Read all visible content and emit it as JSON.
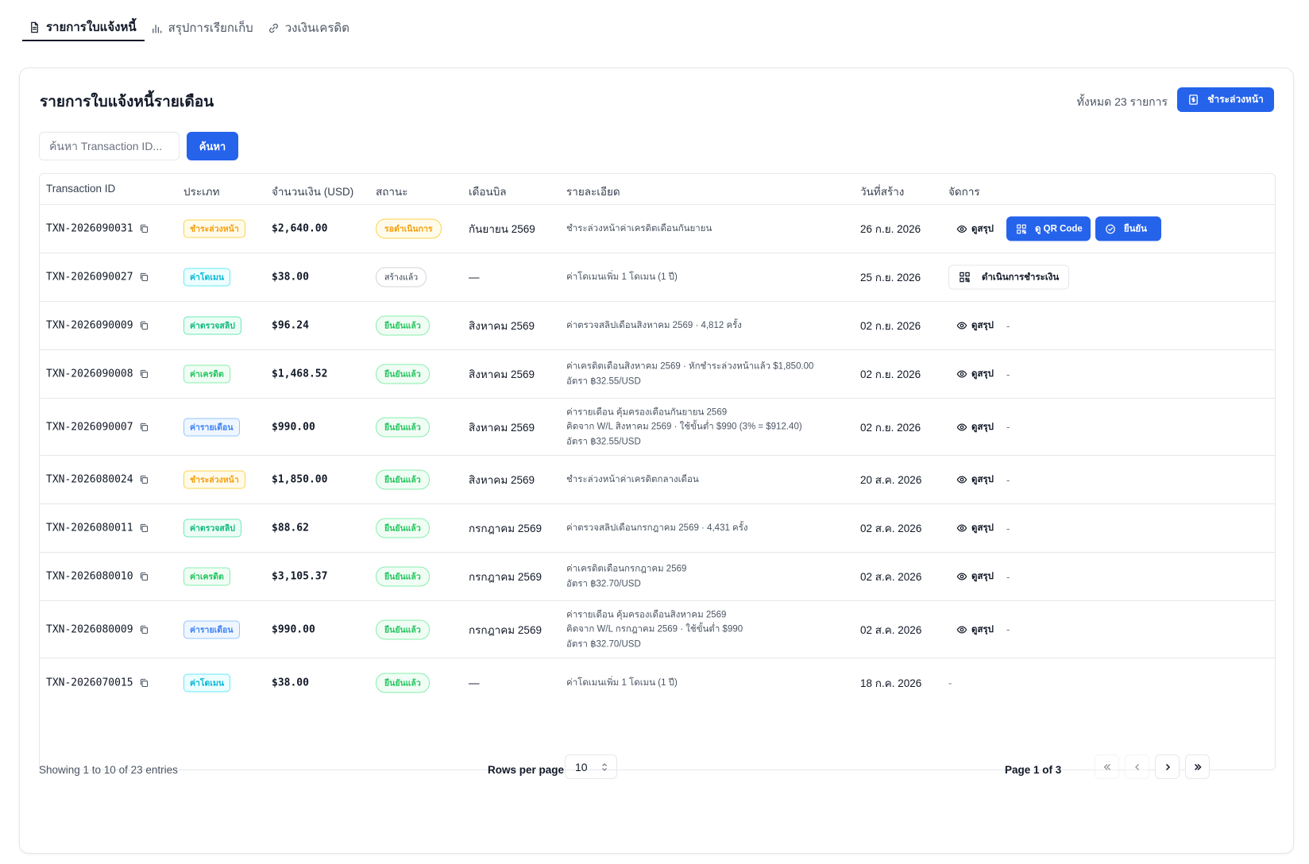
{
  "tabs": [
    {
      "label": "รายการใบแจ้งหนี้",
      "icon": "document-icon",
      "active": true
    },
    {
      "label": "สรุปการเรียกเก็บ",
      "icon": "bar-chart-icon",
      "active": false
    },
    {
      "label": "วงเงินเครดิต",
      "icon": "link-icon",
      "active": false
    }
  ],
  "card": {
    "title": "รายการใบแจ้งหนี้รายเดือน",
    "total_text": "ทั้งหมด 23 รายการ",
    "prepay_label": "ชำระล่วงหน้า"
  },
  "search": {
    "placeholder": "ค้นหา Transaction ID...",
    "value": "",
    "button_label": "ค้นหา"
  },
  "table": {
    "headers": [
      "Transaction ID",
      "ประเภท",
      "จำนวนเงิน (USD)",
      "สถานะ",
      "เดือนบิล",
      "รายละเอียด",
      "วันที่สร้าง",
      "จัดการ"
    ],
    "rows": [
      {
        "id": "TXN-2026090031",
        "type": "ชำระล่วงหน้า",
        "type_style": "prepay",
        "amount": "$2,640.00",
        "status": "รอดำเนินการ",
        "status_style": "pending",
        "month": "กันยายน 2569",
        "details": [
          "ชำระล่วงหน้าค่าเครดิตเดือนกันยายน"
        ],
        "date": "26 ก.ย. 2026",
        "actions": "pending"
      },
      {
        "id": "TXN-2026090027",
        "type": "ค่าโดเมน",
        "type_style": "domain",
        "amount": "$38.00",
        "status": "สร้างแล้ว",
        "status_style": "created",
        "month": "—",
        "details": [
          "ค่าโดเมนเพิ่ม 1 โดเมน (1 ปี)"
        ],
        "date": "25 ก.ย. 2026",
        "actions": "process"
      },
      {
        "id": "TXN-2026090009",
        "type": "ค่าตรวจสลิป",
        "type_style": "slip",
        "amount": "$96.24",
        "status": "ยืนยันแล้ว",
        "status_style": "confirmed",
        "month": "สิงหาคม 2569",
        "details": [
          "ค่าตรวจสลิปเดือนสิงหาคม 2569 · 4,812 ครั้ง"
        ],
        "date": "02 ก.ย. 2026",
        "actions": "view"
      },
      {
        "id": "TXN-2026090008",
        "type": "ค่าเครดิต",
        "type_style": "credit",
        "amount": "$1,468.52",
        "status": "ยืนยันแล้ว",
        "status_style": "confirmed",
        "month": "สิงหาคม 2569",
        "details": [
          "ค่าเครดิตเดือนสิงหาคม 2569 · หักชำระล่วงหน้าแล้ว $1,850.00",
          "อัตรา ฿32.55/USD"
        ],
        "date": "02 ก.ย. 2026",
        "actions": "view"
      },
      {
        "id": "TXN-2026090007",
        "type": "ค่ารายเดือน",
        "type_style": "monthly",
        "amount": "$990.00",
        "status": "ยืนยันแล้ว",
        "status_style": "confirmed",
        "month": "สิงหาคม 2569",
        "details": [
          "ค่ารายเดือน คุ้มครองเดือนกันยายน 2569",
          "คิดจาก W/L สิงหาคม 2569 · ใช้ขั้นต่ำ $990 (3% = $912.40)",
          "อัตรา ฿32.55/USD"
        ],
        "date": "02 ก.ย. 2026",
        "actions": "view"
      },
      {
        "id": "TXN-2026080024",
        "type": "ชำระล่วงหน้า",
        "type_style": "prepay",
        "amount": "$1,850.00",
        "status": "ยืนยันแล้ว",
        "status_style": "confirmed",
        "month": "สิงหาคม 2569",
        "details": [
          "ชำระล่วงหน้าค่าเครดิตกลางเดือน"
        ],
        "date": "20 ส.ค. 2026",
        "actions": "view"
      },
      {
        "id": "TXN-2026080011",
        "type": "ค่าตรวจสลิป",
        "type_style": "slip",
        "amount": "$88.62",
        "status": "ยืนยันแล้ว",
        "status_style": "confirmed",
        "month": "กรกฎาคม 2569",
        "details": [
          "ค่าตรวจสลิปเดือนกรกฎาคม 2569 · 4,431 ครั้ง"
        ],
        "date": "02 ส.ค. 2026",
        "actions": "view"
      },
      {
        "id": "TXN-2026080010",
        "type": "ค่าเครดิต",
        "type_style": "credit",
        "amount": "$3,105.37",
        "status": "ยืนยันแล้ว",
        "status_style": "confirmed",
        "month": "กรกฎาคม 2569",
        "details": [
          "ค่าเครดิตเดือนกรกฎาคม 2569",
          "อัตรา ฿32.70/USD"
        ],
        "date": "02 ส.ค. 2026",
        "actions": "view"
      },
      {
        "id": "TXN-2026080009",
        "type": "ค่ารายเดือน",
        "type_style": "monthly",
        "amount": "$990.00",
        "status": "ยืนยันแล้ว",
        "status_style": "confirmed",
        "month": "กรกฎาคม 2569",
        "details": [
          "ค่ารายเดือน คุ้มครองเดือนสิงหาคม 2569",
          "คิดจาก W/L กรกฎาคม 2569 · ใช้ขั้นต่ำ $990",
          "อัตรา ฿32.70/USD"
        ],
        "date": "02 ส.ค. 2026",
        "actions": "view"
      },
      {
        "id": "TXN-2026070015",
        "type": "ค่าโดเมน",
        "type_style": "domain",
        "amount": "$38.00",
        "status": "ยืนยันแล้ว",
        "status_style": "confirmed",
        "month": "—",
        "details": [
          "ค่าโดเมนเพิ่ม 1 โดเมน (1 ปี)"
        ],
        "date": "18 ก.ค. 2026",
        "actions": "none"
      }
    ],
    "action_labels": {
      "view": "ดูสรุป",
      "qr": "ดู QR Code",
      "confirm": "ยืนยัน",
      "process": "ดำเนินการชำระเงิน",
      "none": "-"
    }
  },
  "footer": {
    "showing": "Showing 1 to 10 of 23 entries",
    "rows_per_page_label": "Rows per page",
    "rows_per_page_value": "10",
    "page_info": "Page 1 of 3"
  }
}
